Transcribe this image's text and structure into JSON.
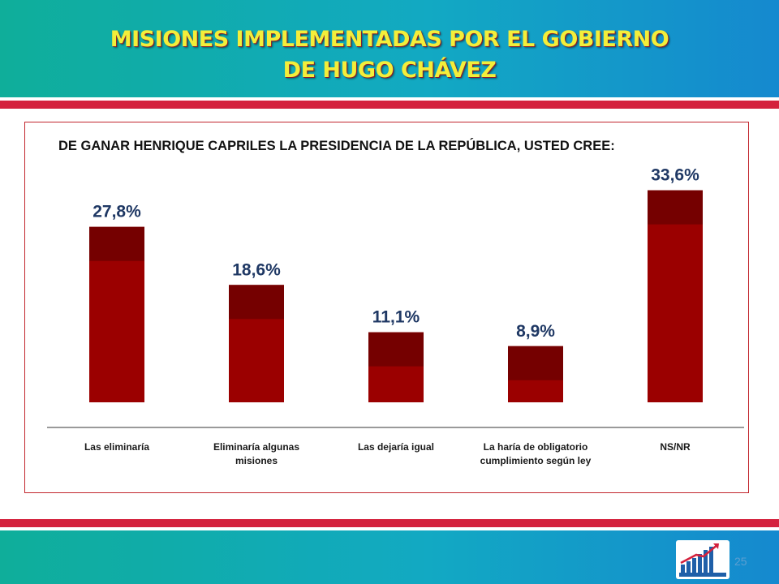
{
  "slide": {
    "title_line1": "MISIONES IMPLEMENTADAS POR EL GOBIERNO",
    "title_line2": "DE HUGO CHÁVEZ",
    "page_number": "25"
  },
  "colors": {
    "bar_main": "#9b0000",
    "bar_top": "#750000",
    "value_label": "#1f3864",
    "header_teal": "#12a9c3",
    "stripe_red": "#d4213d",
    "title_yellow": "#f3ee3a"
  },
  "chart_data": {
    "type": "bar",
    "title": "DE GANAR HENRIQUE CAPRILES LA PRESIDENCIA DE LA REPÚBLICA, USTED CREE:",
    "categories": [
      "Las eliminaría",
      "Eliminaría algunas misiones",
      "Las dejaría igual",
      "La haría de obligatorio cumplimiento según ley",
      "NS/NR"
    ],
    "category_lines": [
      [
        "Las eliminaría"
      ],
      [
        "Eliminaría algunas",
        "misiones"
      ],
      [
        "Las dejaría igual"
      ],
      [
        "La haría de obligatorio",
        "cumplimiento según ley"
      ],
      [
        "NS/NR"
      ]
    ],
    "values": [
      27.8,
      18.6,
      11.1,
      8.9,
      33.6
    ],
    "value_labels": [
      "27,8%",
      "18,6%",
      "11,1%",
      "8,9%",
      "33,6%"
    ],
    "unit": "%",
    "xlabel": "",
    "ylabel": "",
    "grid": false,
    "legend": "none"
  }
}
